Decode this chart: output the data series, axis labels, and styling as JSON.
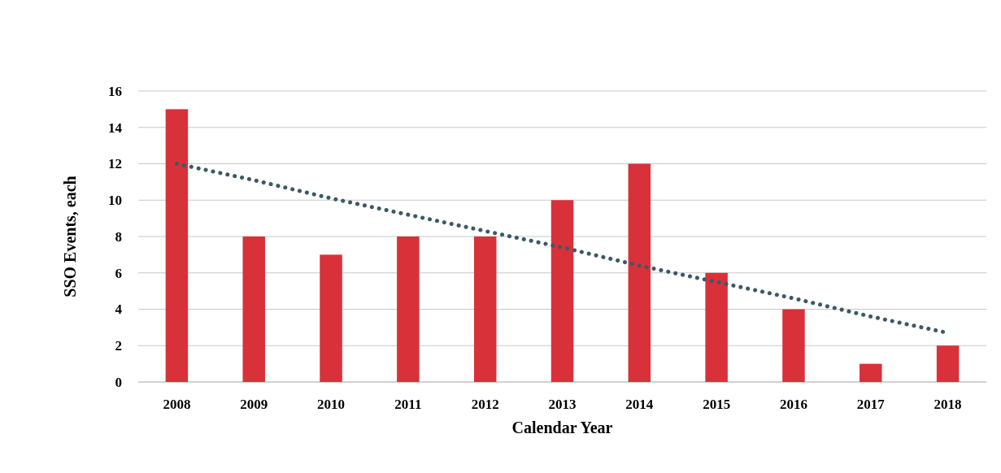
{
  "chart_data": {
    "type": "bar",
    "xlabel": "Calendar Year",
    "ylabel": "SSO Events, each",
    "categories": [
      "2008",
      "2009",
      "2010",
      "2011",
      "2012",
      "2013",
      "2014",
      "2015",
      "2016",
      "2017",
      "2018"
    ],
    "series": [
      {
        "color": "#d9313a",
        "values": [
          15,
          8,
          7,
          8,
          8,
          10,
          12,
          6,
          4,
          1,
          2
        ]
      },
      {
        "type": "line",
        "color": "#3d5866",
        "values": [
          12.0,
          11.1,
          10.1,
          9.2,
          8.3,
          7.4,
          6.4,
          5.5,
          4.6,
          3.6,
          2.7
        ],
        "line_style": "dotted"
      }
    ],
    "ylim": [
      0,
      16
    ],
    "yticks": [
      0,
      2,
      4,
      6,
      8,
      10,
      12,
      14,
      16
    ],
    "grid": "y"
  }
}
